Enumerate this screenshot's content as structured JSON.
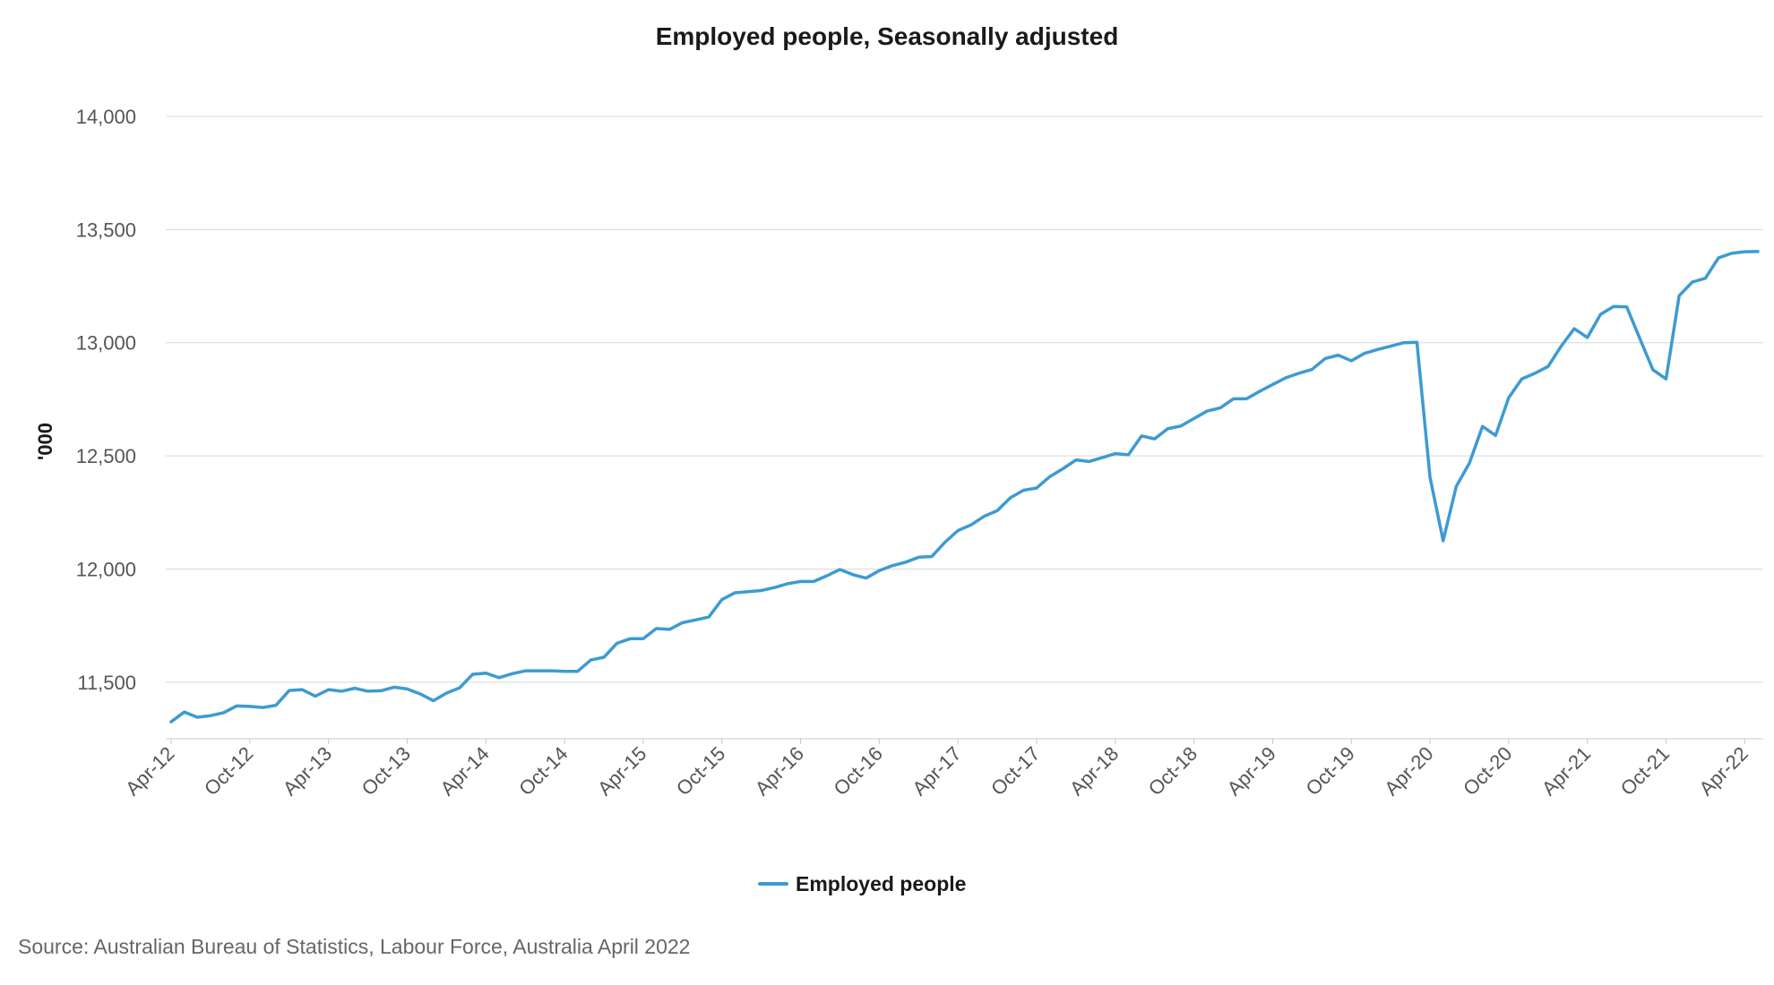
{
  "chart_data": {
    "type": "line",
    "title": "Employed people, Seasonally adjusted",
    "ylabel": "'000",
    "xlabel": "",
    "ylim": [
      11250,
      14000
    ],
    "yticks": [
      11500,
      12000,
      12500,
      13000,
      13500,
      14000
    ],
    "ytick_labels": [
      "11,500",
      "12,000",
      "12,500",
      "13,000",
      "13,500",
      "14,000"
    ],
    "xtick_labels": [
      "Apr-12",
      "Oct-12",
      "Apr-13",
      "Oct-13",
      "Apr-14",
      "Oct-14",
      "Apr-15",
      "Oct-15",
      "Apr-16",
      "Oct-16",
      "Apr-17",
      "Oct-17",
      "Apr-18",
      "Oct-18",
      "Apr-19",
      "Oct-19",
      "Apr-20",
      "Oct-20",
      "Apr-21",
      "Oct-21",
      "Apr-22"
    ],
    "grid": true,
    "legend_position": "bottom-center",
    "source": "Source: Australian Bureau of Statistics, Labour Force, Australia April 2022",
    "series": [
      {
        "name": "Employed people",
        "color": "#3d9bd1",
        "values": [
          11325,
          11368,
          11345,
          11352,
          11365,
          11395,
          11393,
          11388,
          11398,
          11463,
          11467,
          11438,
          11467,
          11460,
          11473,
          11460,
          11462,
          11478,
          11470,
          11448,
          11418,
          11452,
          11475,
          11535,
          11540,
          11520,
          11537,
          11550,
          11550,
          11550,
          11548,
          11548,
          11598,
          11610,
          11672,
          11692,
          11692,
          11737,
          11733,
          11763,
          11775,
          11788,
          11865,
          11895,
          11900,
          11905,
          11918,
          11935,
          11945,
          11945,
          11970,
          11998,
          11975,
          11960,
          11993,
          12015,
          12030,
          12052,
          12055,
          12118,
          12170,
          12195,
          12233,
          12258,
          12315,
          12348,
          12358,
          12408,
          12443,
          12482,
          12475,
          12492,
          12510,
          12505,
          12588,
          12575,
          12620,
          12632,
          12665,
          12698,
          12712,
          12752,
          12752,
          12785,
          12815,
          12845,
          12865,
          12882,
          12930,
          12945,
          12920,
          12953,
          12970,
          12985,
          13000,
          13002,
          12405,
          12125,
          12365,
          12468,
          12630,
          12590,
          12757,
          12840,
          12865,
          12895,
          12985,
          13062,
          13023,
          13125,
          13160,
          13158,
          13018,
          12880,
          12840,
          13208,
          13268,
          13285,
          13375,
          13395,
          13402,
          13403
        ]
      }
    ]
  }
}
